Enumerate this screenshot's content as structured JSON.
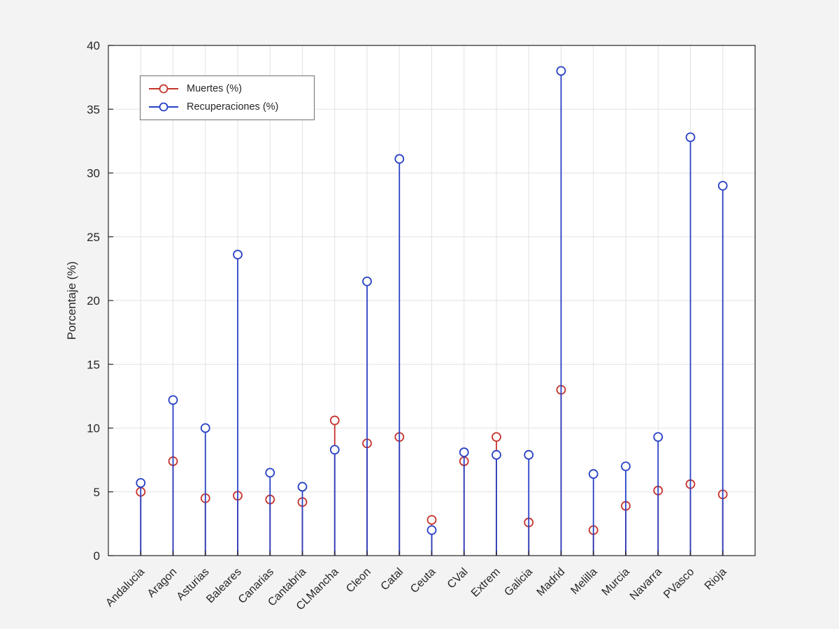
{
  "chart_data": {
    "type": "stem",
    "title": "",
    "xlabel": "",
    "ylabel": "Porcentaje (%)",
    "ylim": [
      0,
      40
    ],
    "ytick_step": 5,
    "grid": true,
    "legend_position": "top-left",
    "categories": [
      "Andalucia",
      "Aragon",
      "Asturias",
      "Baleares",
      "Canarias",
      "Cantabria",
      "CLMancha",
      "Cleon",
      "Catal",
      "Ceuta",
      "CVal",
      "Extrem",
      "Galicia",
      "Madrid",
      "Melilla",
      "Murcia",
      "Navarra",
      "PVasco",
      "Rioja"
    ],
    "series": [
      {
        "name": "Muertes (%)",
        "color": "#c5342b",
        "values": [
          5.0,
          7.4,
          4.5,
          4.7,
          4.4,
          4.2,
          10.6,
          8.8,
          9.3,
          2.8,
          7.4,
          9.3,
          2.6,
          13.0,
          2.0,
          3.9,
          5.1,
          5.6,
          4.8
        ]
      },
      {
        "name": "Recuperaciones (%)",
        "color": "#2841c5",
        "values": [
          5.7,
          12.2,
          10.0,
          23.6,
          6.5,
          5.4,
          8.3,
          21.5,
          31.1,
          2.0,
          8.1,
          7.9,
          7.9,
          38.0,
          6.4,
          7.0,
          9.3,
          32.8,
          29.0
        ]
      }
    ],
    "colors": {
      "background": "#f3f3f3",
      "plot_background": "#ffffff",
      "grid": "#e2e2e2",
      "axis": "#262626"
    }
  }
}
